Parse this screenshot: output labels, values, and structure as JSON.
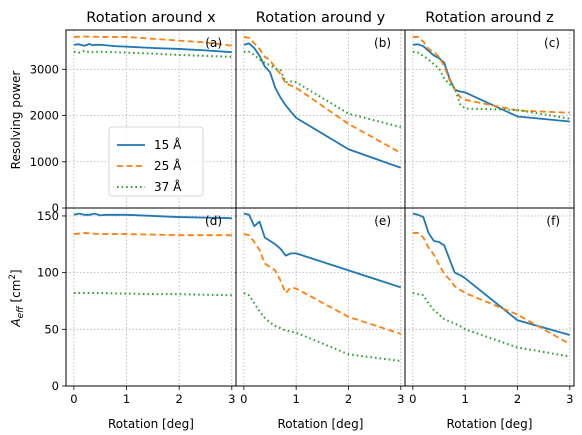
{
  "chart_data": {
    "type": "line",
    "x_label": "Rotation [deg]",
    "x_ticks": [
      0,
      1,
      2,
      3
    ],
    "xlim": [
      -0.15,
      3.08
    ],
    "legend": {
      "placement": "center-left of panel (a)",
      "entries": [
        "15 Å",
        "25 Å",
        "37 Å"
      ]
    },
    "series_colors": {
      "15 Å": "#1f77b4",
      "25 Å": "#ff7f0e",
      "37 Å": "#2ca02c"
    },
    "series_styles": {
      "15 Å": "solid",
      "25 Å": "dashed",
      "37 Å": "dotted"
    },
    "columns": [
      {
        "title": "Rotation around x"
      },
      {
        "title": "Rotation around y"
      },
      {
        "title": "Rotation around z"
      }
    ],
    "rows": [
      {
        "ylabel": "Resolving power",
        "ylim": [
          0,
          3850
        ],
        "yticks": [
          0,
          1000,
          2000,
          3000
        ]
      },
      {
        "ylabel_main": "A",
        "ylabel_sub": "eff",
        "ylabel_unit": " [cm",
        "ylabel_sup": "2",
        "ylabel_end": "]",
        "ylim": [
          0,
          157
        ],
        "yticks": [
          0,
          50,
          100,
          150
        ]
      }
    ],
    "panels": [
      {
        "label": "(a)",
        "row": 0,
        "col": 0,
        "series": [
          {
            "name": "15 Å",
            "x": [
              0,
              0.1,
              0.2,
              0.3,
              0.35,
              0.4,
              0.5,
              0.6,
              0.7,
              0.8,
              1,
              1.5,
              2,
              2.5,
              3
            ],
            "y": [
              3530,
              3540,
              3510,
              3550,
              3520,
              3530,
              3530,
              3520,
              3510,
              3500,
              3490,
              3460,
              3440,
              3410,
              3370
            ]
          },
          {
            "name": "25 Å",
            "x": [
              0,
              0.2,
              0.5,
              1,
              1.5,
              2,
              2.5,
              3
            ],
            "y": [
              3700,
              3710,
              3700,
              3700,
              3660,
              3620,
              3580,
              3510
            ]
          },
          {
            "name": "37 Å",
            "x": [
              0,
              0.1,
              0.2,
              0.3,
              0.5,
              1,
              1.5,
              2,
              2.5,
              3
            ],
            "y": [
              3380,
              3360,
              3400,
              3370,
              3380,
              3360,
              3340,
              3310,
              3290,
              3270
            ]
          }
        ]
      },
      {
        "label": "(b)",
        "row": 0,
        "col": 1,
        "series": [
          {
            "name": "15 Å",
            "x": [
              0,
              0.1,
              0.2,
              0.3,
              0.4,
              0.5,
              0.6,
              0.7,
              0.8,
              0.9,
              1,
              2,
              3
            ],
            "y": [
              3530,
              3560,
              3460,
              3290,
              3060,
              2940,
              2600,
              2390,
              2220,
              2080,
              1950,
              1270,
              870
            ]
          },
          {
            "name": "25 Å",
            "x": [
              0,
              0.1,
              0.2,
              0.3,
              0.4,
              0.5,
              0.6,
              0.7,
              0.8,
              0.9,
              1,
              2,
              3
            ],
            "y": [
              3700,
              3680,
              3560,
              3440,
              3270,
              3200,
              3030,
              2900,
              2690,
              2650,
              2600,
              1820,
              1190
            ]
          },
          {
            "name": "37 Å",
            "x": [
              0,
              0.1,
              0.2,
              0.3,
              0.4,
              0.5,
              0.6,
              0.7,
              0.8,
              0.9,
              1,
              2,
              3
            ],
            "y": [
              3380,
              3380,
              3310,
              3210,
              3140,
              3090,
              3020,
              2980,
              2720,
              2740,
              2720,
              2040,
              1750
            ]
          }
        ]
      },
      {
        "label": "(c)",
        "row": 0,
        "col": 2,
        "series": [
          {
            "name": "15 Å",
            "x": [
              0,
              0.1,
              0.2,
              0.3,
              0.4,
              0.5,
              0.6,
              0.7,
              0.8,
              0.9,
              1,
              2,
              3
            ],
            "y": [
              3530,
              3540,
              3500,
              3400,
              3300,
              3240,
              3140,
              2800,
              2560,
              2520,
              2500,
              1980,
              1870
            ]
          },
          {
            "name": "25 Å",
            "x": [
              0,
              0.1,
              0.2,
              0.3,
              0.4,
              0.5,
              0.6,
              0.7,
              0.8,
              0.9,
              1,
              2,
              3
            ],
            "y": [
              3700,
              3700,
              3600,
              3440,
              3370,
              3270,
              3070,
              2770,
              2570,
              2400,
              2340,
              2110,
              2060
            ]
          },
          {
            "name": "37 Å",
            "x": [
              0,
              0.1,
              0.2,
              0.3,
              0.4,
              0.5,
              0.6,
              0.7,
              0.8,
              0.9,
              1,
              2,
              3
            ],
            "y": [
              3380,
              3360,
              3290,
              3210,
              3110,
              3020,
              2800,
              2680,
              2600,
              2250,
              2150,
              2120,
              1930
            ]
          }
        ]
      },
      {
        "label": "(d)",
        "row": 1,
        "col": 0,
        "series": [
          {
            "name": "15 Å",
            "x": [
              0,
              0.1,
              0.2,
              0.3,
              0.4,
              0.5,
              0.6,
              0.8,
              1,
              1.5,
              2,
              2.5,
              3
            ],
            "y": [
              151,
              152,
              151,
              151,
              152,
              150.5,
              151,
              151,
              151,
              150,
              149,
              148.5,
              148
            ]
          },
          {
            "name": "25 Å",
            "x": [
              0,
              0.2,
              0.5,
              1,
              1.5,
              2,
              2.5,
              3
            ],
            "y": [
              134,
              135,
              134,
              134,
              133.5,
              133,
              133,
              133
            ]
          },
          {
            "name": "37 Å",
            "x": [
              0,
              0.5,
              1,
              1.5,
              2,
              2.5,
              3
            ],
            "y": [
              82,
              82,
              81.5,
              81,
              81,
              80.5,
              80
            ]
          }
        ]
      },
      {
        "label": "(e)",
        "row": 1,
        "col": 1,
        "series": [
          {
            "name": "15 Å",
            "x": [
              0,
              0.1,
              0.2,
              0.3,
              0.4,
              0.5,
              0.6,
              0.7,
              0.8,
              0.9,
              1,
              2,
              3
            ],
            "y": [
              152,
              151,
              141,
              145,
              131,
              128,
              125,
              121,
              115,
              117,
              117,
              102,
              87
            ]
          },
          {
            "name": "25 Å",
            "x": [
              0,
              0.1,
              0.2,
              0.3,
              0.4,
              0.5,
              0.6,
              0.7,
              0.8,
              0.9,
              1,
              2,
              3
            ],
            "y": [
              134,
              133,
              127,
              120,
              108,
              105,
              102,
              93,
              82,
              87,
              86,
              61,
              46
            ]
          },
          {
            "name": "37 Å",
            "x": [
              0,
              0.1,
              0.2,
              0.3,
              0.4,
              0.5,
              0.6,
              0.7,
              0.8,
              0.9,
              1,
              2,
              3
            ],
            "y": [
              82,
              80,
              73,
              66,
              60,
              56,
              53,
              51,
              49,
              48,
              47,
              28,
              22
            ]
          }
        ]
      },
      {
        "label": "(f)",
        "row": 1,
        "col": 2,
        "series": [
          {
            "name": "15 Å",
            "x": [
              0,
              0.1,
              0.2,
              0.3,
              0.4,
              0.5,
              0.6,
              0.7,
              0.8,
              0.9,
              1,
              2,
              3
            ],
            "y": [
              152,
              151,
              149,
              135,
              128,
              127,
              124,
              112,
              100,
              98,
              95,
              58,
              45
            ]
          },
          {
            "name": "25 Å",
            "x": [
              0,
              0.1,
              0.2,
              0.3,
              0.4,
              0.5,
              0.6,
              0.7,
              0.8,
              0.9,
              1,
              2,
              3
            ],
            "y": [
              135,
              135,
              131,
              122,
              116,
              107,
              99,
              94,
              88,
              85,
              82,
              63,
              37
            ]
          },
          {
            "name": "37 Å",
            "x": [
              0,
              0.1,
              0.2,
              0.3,
              0.4,
              0.5,
              0.6,
              0.7,
              0.8,
              0.9,
              1,
              2,
              3
            ],
            "y": [
              82,
              81,
              80,
              73,
              67,
              63,
              59,
              57,
              55,
              53,
              50,
              34,
              26
            ]
          }
        ]
      }
    ]
  }
}
